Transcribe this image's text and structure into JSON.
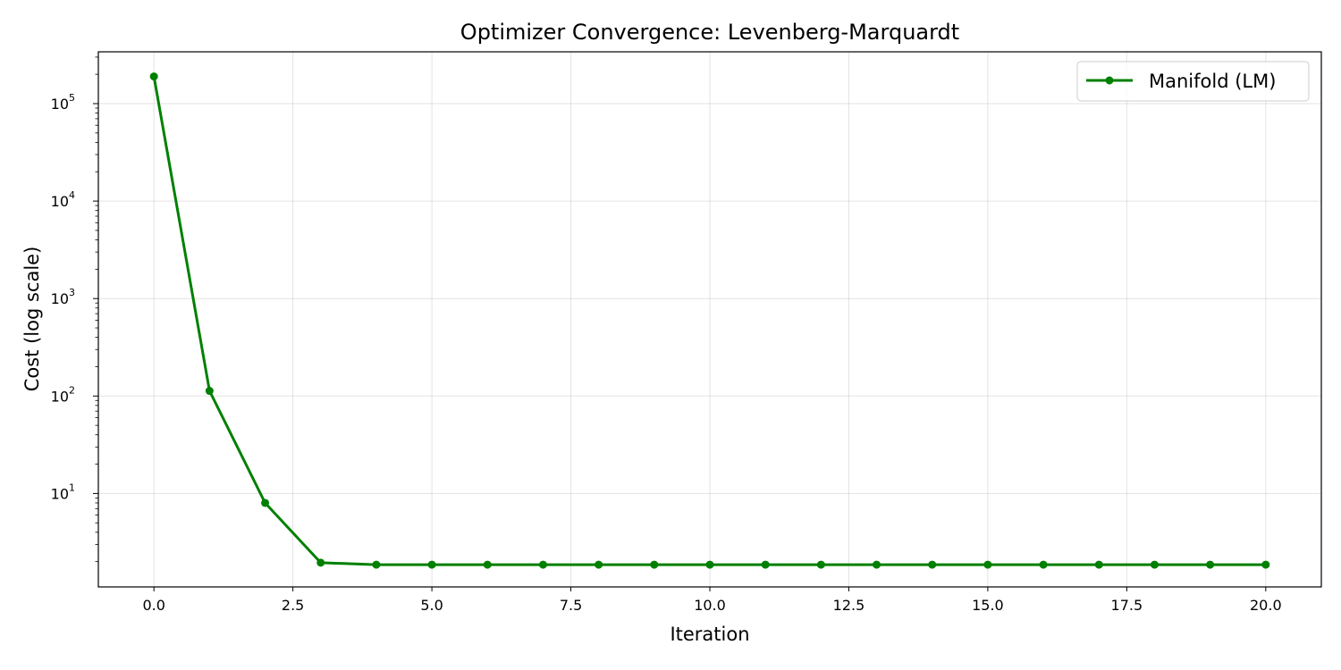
{
  "chart_data": {
    "type": "line",
    "title": "Optimizer Convergence: Levenberg-Marquardt",
    "xlabel": "Iteration",
    "ylabel": "Cost (log scale)",
    "yscale": "log",
    "xlim": [
      -1.0,
      21.0
    ],
    "ylim": [
      1.1,
      340000
    ],
    "x_ticks": [
      0.0,
      2.5,
      5.0,
      7.5,
      10.0,
      12.5,
      15.0,
      17.5,
      20.0
    ],
    "x_tick_labels": [
      "0.0",
      "2.5",
      "5.0",
      "7.5",
      "10.0",
      "12.5",
      "15.0",
      "17.5",
      "20.0"
    ],
    "y_ticks": [
      {
        "base": "10",
        "exp": "1",
        "value": 10
      },
      {
        "base": "10",
        "exp": "2",
        "value": 100
      },
      {
        "base": "10",
        "exp": "3",
        "value": 1000
      },
      {
        "base": "10",
        "exp": "4",
        "value": 10000
      },
      {
        "base": "10",
        "exp": "5",
        "value": 100000
      }
    ],
    "grid": true,
    "legend_position": "top-right",
    "series": [
      {
        "name": "Manifold (LM)",
        "color": "#008000",
        "marker": "circle",
        "x": [
          0,
          1,
          2,
          3,
          4,
          5,
          6,
          7,
          8,
          9,
          10,
          11,
          12,
          13,
          14,
          15,
          16,
          17,
          18,
          19,
          20
        ],
        "y": [
          190000,
          113,
          8.0,
          1.95,
          1.86,
          1.86,
          1.86,
          1.86,
          1.86,
          1.86,
          1.86,
          1.86,
          1.86,
          1.86,
          1.86,
          1.86,
          1.86,
          1.86,
          1.86,
          1.86,
          1.86
        ]
      }
    ]
  }
}
